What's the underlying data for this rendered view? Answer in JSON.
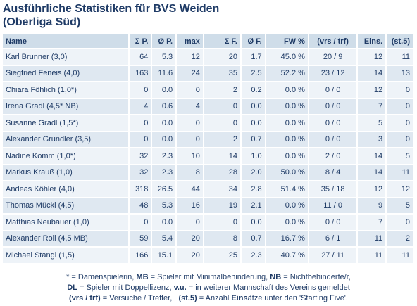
{
  "title_line1": "Ausführliche Statistiken für BVS Weiden",
  "title_line2": "(Oberliga Süd)",
  "headers": [
    "Name",
    "Σ P.",
    "Ø P.",
    "max",
    "Σ F.",
    "Ø F.",
    "FW %",
    "(vrs / trf)",
    "Eins.",
    "(st.5)"
  ],
  "rows": [
    [
      "Karl Brunner (3,0)",
      "64",
      "5.3",
      "12",
      "20",
      "1.7",
      "45.0 %",
      "20 / 9",
      "12",
      "11"
    ],
    [
      "Siegfried Feneis (4,0)",
      "163",
      "11.6",
      "24",
      "35",
      "2.5",
      "52.2 %",
      "23 / 12",
      "14",
      "13"
    ],
    [
      "Chiara Föhlich (1,0*)",
      "0",
      "0.0",
      "0",
      "2",
      "0.2",
      "0.0 %",
      "0 / 0",
      "12",
      "0"
    ],
    [
      "Irena Gradl (4,5* NB)",
      "4",
      "0.6",
      "4",
      "0",
      "0.0",
      "0.0 %",
      "0 / 0",
      "7",
      "0"
    ],
    [
      "Susanne Gradl (1,5*)",
      "0",
      "0.0",
      "0",
      "0",
      "0.0",
      "0.0 %",
      "0 / 0",
      "5",
      "0"
    ],
    [
      "Alexander Grundler (3,5)",
      "0",
      "0.0",
      "0",
      "2",
      "0.7",
      "0.0 %",
      "0 / 0",
      "3",
      "0"
    ],
    [
      "Nadine Komm (1,0*)",
      "32",
      "2.3",
      "10",
      "14",
      "1.0",
      "0.0 %",
      "2 / 0",
      "14",
      "5"
    ],
    [
      "Markus Krauß (1,0)",
      "32",
      "2.3",
      "8",
      "28",
      "2.0",
      "50.0 %",
      "8 / 4",
      "14",
      "11"
    ],
    [
      "Andeas Köhler (4,0)",
      "318",
      "26.5",
      "44",
      "34",
      "2.8",
      "51.4 %",
      "35 / 18",
      "12",
      "12"
    ],
    [
      "Thomas Mückl (4,5)",
      "48",
      "5.3",
      "16",
      "19",
      "2.1",
      "0.0 %",
      "11 / 0",
      "9",
      "5"
    ],
    [
      "Matthias Neubauer (1,0)",
      "0",
      "0.0",
      "0",
      "0",
      "0.0",
      "0.0 %",
      "0 / 0",
      "7",
      "0"
    ],
    [
      "Alexander Roll (4,5 MB)",
      "59",
      "5.4",
      "20",
      "8",
      "0.7",
      "16.7 %",
      "6 / 1",
      "11",
      "2"
    ],
    [
      "Michael Stangl (1,5)",
      "166",
      "15.1",
      "20",
      "25",
      "2.3",
      "40.7 %",
      "27 / 11",
      "11",
      "11"
    ]
  ],
  "footnote": {
    "l1_a": "* = Damenspielerin, ",
    "l1_b": "MB",
    "l1_c": " = Spieler mit Minimalbehinderung, ",
    "l1_d": "NB",
    "l1_e": " = Nichtbehinderte/r,",
    "l2_a": "DL",
    "l2_b": " = Spieler mit Doppellizenz, ",
    "l2_c": "v.u.",
    "l2_d": " = in weiterer Mannschaft des Vereins gemeldet",
    "l3_a": "(vrs / trf)",
    "l3_b": " = Versuche / Treffer,   ",
    "l3_c": "(st.5)",
    "l3_d": " = Anzahl ",
    "l3_e": "Eins",
    "l3_f": "ätze unter den 'Starting Five'."
  }
}
